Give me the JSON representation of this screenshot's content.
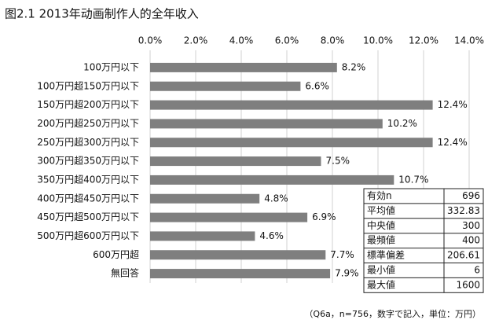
{
  "chart_data": {
    "type": "bar",
    "orientation": "horizontal",
    "title": "图2.1 2013年动画制作人的全年收入",
    "categories": [
      "100万円以下",
      "100万円超150万円以下",
      "150万円超200万円以下",
      "200万円超250万円以下",
      "250万円超300万円以下",
      "300万円超350万円以下",
      "350万円超400万円以下",
      "400万円超450万円以下",
      "450万円超500万円以下",
      "500万円超600万円以下",
      "600万円超",
      "無回答"
    ],
    "values": [
      8.2,
      6.6,
      12.4,
      10.2,
      12.4,
      7.5,
      10.7,
      4.8,
      6.9,
      4.6,
      7.7,
      7.9
    ],
    "value_labels": [
      "8.2%",
      "6.6%",
      "12.4%",
      "10.2%",
      "12.4%",
      "7.5%",
      "10.7%",
      "4.8%",
      "6.9%",
      "4.6%",
      "7.7%",
      "7.9%"
    ],
    "color": "#7f7f7f",
    "xlim": [
      0,
      14
    ],
    "xticks": [
      {
        "value": 0,
        "label": "0.0%"
      },
      {
        "value": 2,
        "label": "2.0%"
      },
      {
        "value": 4,
        "label": "4.0%"
      },
      {
        "value": 6,
        "label": "6.0%"
      },
      {
        "value": 8,
        "label": "8.0%"
      },
      {
        "value": 10,
        "label": "10.0%"
      },
      {
        "value": 12,
        "label": "12.0%"
      },
      {
        "value": 14,
        "label": "14.0%"
      }
    ],
    "grid": true,
    "stats": {
      "rows": [
        [
          "有効n",
          696
        ],
        [
          "平均値",
          332.83
        ],
        [
          "中央値",
          300
        ],
        [
          "最頻値",
          400
        ],
        [
          "標準偏差",
          206.61
        ],
        [
          "最小値",
          6
        ],
        [
          "最大値",
          1600
        ]
      ]
    },
    "note": "（Q6a，n=756，数字で記入，単位：万円）"
  }
}
